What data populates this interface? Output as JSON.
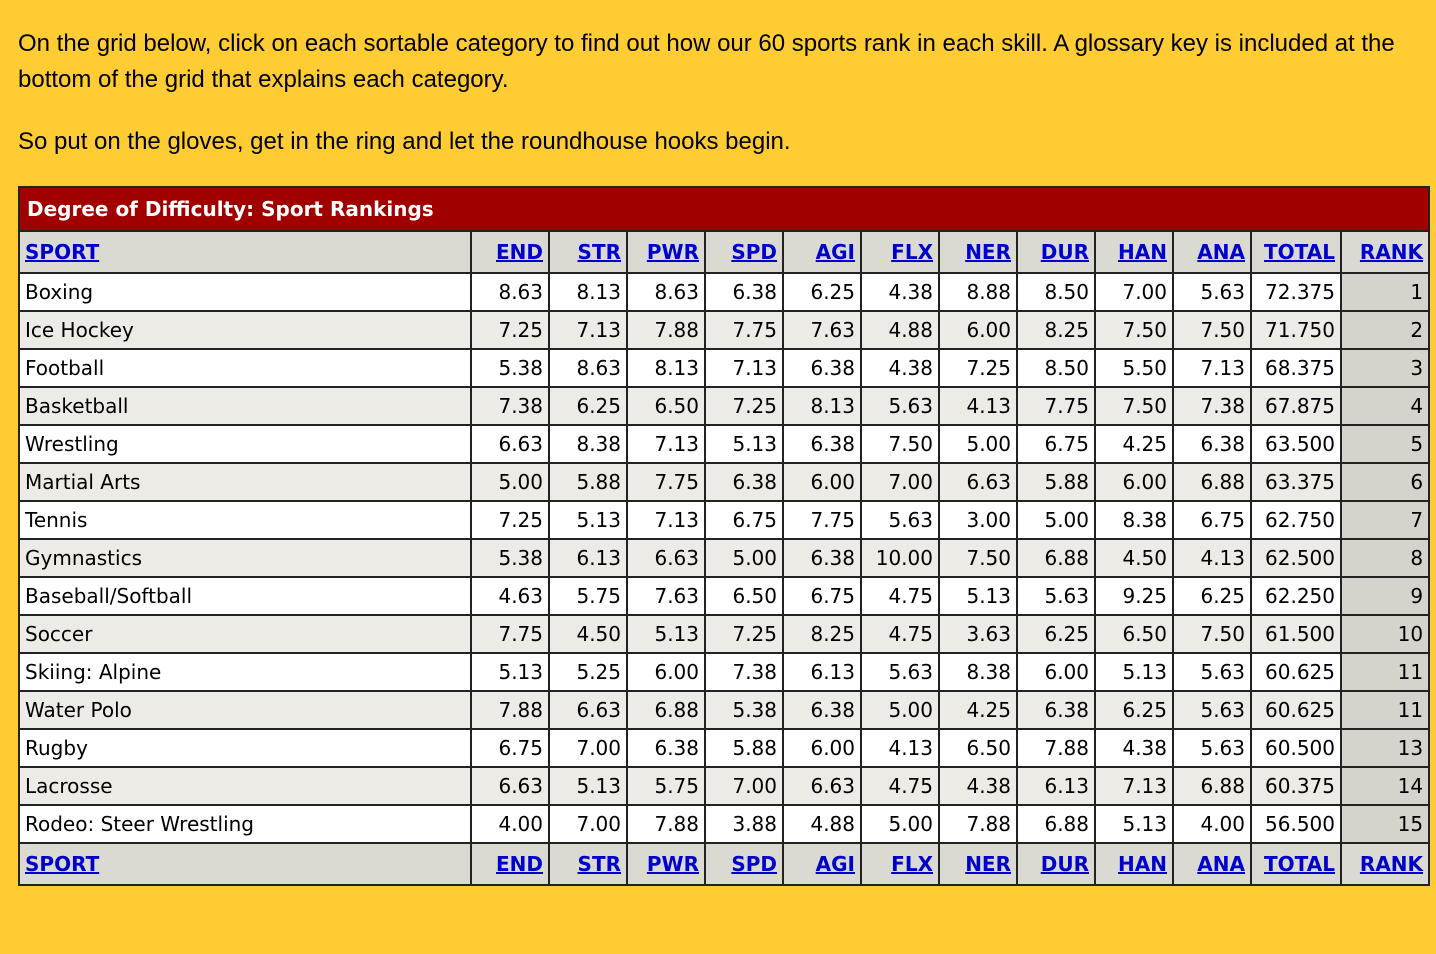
{
  "intro": {
    "paragraph1": "On the grid below, click on each sortable category to find out how our 60 sports rank in each skill. A glossary key is included at the bottom of the grid that explains each category.",
    "paragraph2": "So put on the gloves, get in the ring and let the roundhouse hooks begin."
  },
  "table": {
    "caption": "Degree of Difficulty: Sport Rankings",
    "columns": [
      "SPORT",
      "END",
      "STR",
      "PWR",
      "SPD",
      "AGI",
      "FLX",
      "NER",
      "DUR",
      "HAN",
      "ANA",
      "TOTAL",
      "RANK"
    ],
    "rows": [
      [
        "Boxing",
        "8.63",
        "8.13",
        "8.63",
        "6.38",
        "6.25",
        "4.38",
        "8.88",
        "8.50",
        "7.00",
        "5.63",
        "72.375",
        "1"
      ],
      [
        "Ice Hockey",
        "7.25",
        "7.13",
        "7.88",
        "7.75",
        "7.63",
        "4.88",
        "6.00",
        "8.25",
        "7.50",
        "7.50",
        "71.750",
        "2"
      ],
      [
        "Football",
        "5.38",
        "8.63",
        "8.13",
        "7.13",
        "6.38",
        "4.38",
        "7.25",
        "8.50",
        "5.50",
        "7.13",
        "68.375",
        "3"
      ],
      [
        "Basketball",
        "7.38",
        "6.25",
        "6.50",
        "7.25",
        "8.13",
        "5.63",
        "4.13",
        "7.75",
        "7.50",
        "7.38",
        "67.875",
        "4"
      ],
      [
        "Wrestling",
        "6.63",
        "8.38",
        "7.13",
        "5.13",
        "6.38",
        "7.50",
        "5.00",
        "6.75",
        "4.25",
        "6.38",
        "63.500",
        "5"
      ],
      [
        "Martial Arts",
        "5.00",
        "5.88",
        "7.75",
        "6.38",
        "6.00",
        "7.00",
        "6.63",
        "5.88",
        "6.00",
        "6.88",
        "63.375",
        "6"
      ],
      [
        "Tennis",
        "7.25",
        "5.13",
        "7.13",
        "6.75",
        "7.75",
        "5.63",
        "3.00",
        "5.00",
        "8.38",
        "6.75",
        "62.750",
        "7"
      ],
      [
        "Gymnastics",
        "5.38",
        "6.13",
        "6.63",
        "5.00",
        "6.38",
        "10.00",
        "7.50",
        "6.88",
        "4.50",
        "4.13",
        "62.500",
        "8"
      ],
      [
        "Baseball/Softball",
        "4.63",
        "5.75",
        "7.63",
        "6.50",
        "6.75",
        "4.75",
        "5.13",
        "5.63",
        "9.25",
        "6.25",
        "62.250",
        "9"
      ],
      [
        "Soccer",
        "7.75",
        "4.50",
        "5.13",
        "7.25",
        "8.25",
        "4.75",
        "3.63",
        "6.25",
        "6.50",
        "7.50",
        "61.500",
        "10"
      ],
      [
        "Skiing: Alpine",
        "5.13",
        "5.25",
        "6.00",
        "7.38",
        "6.13",
        "5.63",
        "8.38",
        "6.00",
        "5.13",
        "5.63",
        "60.625",
        "11"
      ],
      [
        "Water Polo",
        "7.88",
        "6.63",
        "6.88",
        "5.38",
        "6.38",
        "5.00",
        "4.25",
        "6.38",
        "6.25",
        "5.63",
        "60.625",
        "11"
      ],
      [
        "Rugby",
        "6.75",
        "7.00",
        "6.38",
        "5.88",
        "6.00",
        "4.13",
        "6.50",
        "7.88",
        "4.38",
        "5.63",
        "60.500",
        "13"
      ],
      [
        "Lacrosse",
        "6.63",
        "5.13",
        "5.75",
        "7.00",
        "6.63",
        "4.75",
        "4.38",
        "6.13",
        "7.13",
        "6.88",
        "60.375",
        "14"
      ],
      [
        "Rodeo: Steer Wrestling",
        "4.00",
        "7.00",
        "7.88",
        "3.88",
        "4.88",
        "5.00",
        "7.88",
        "6.88",
        "5.13",
        "4.00",
        "56.500",
        "15"
      ]
    ]
  }
}
